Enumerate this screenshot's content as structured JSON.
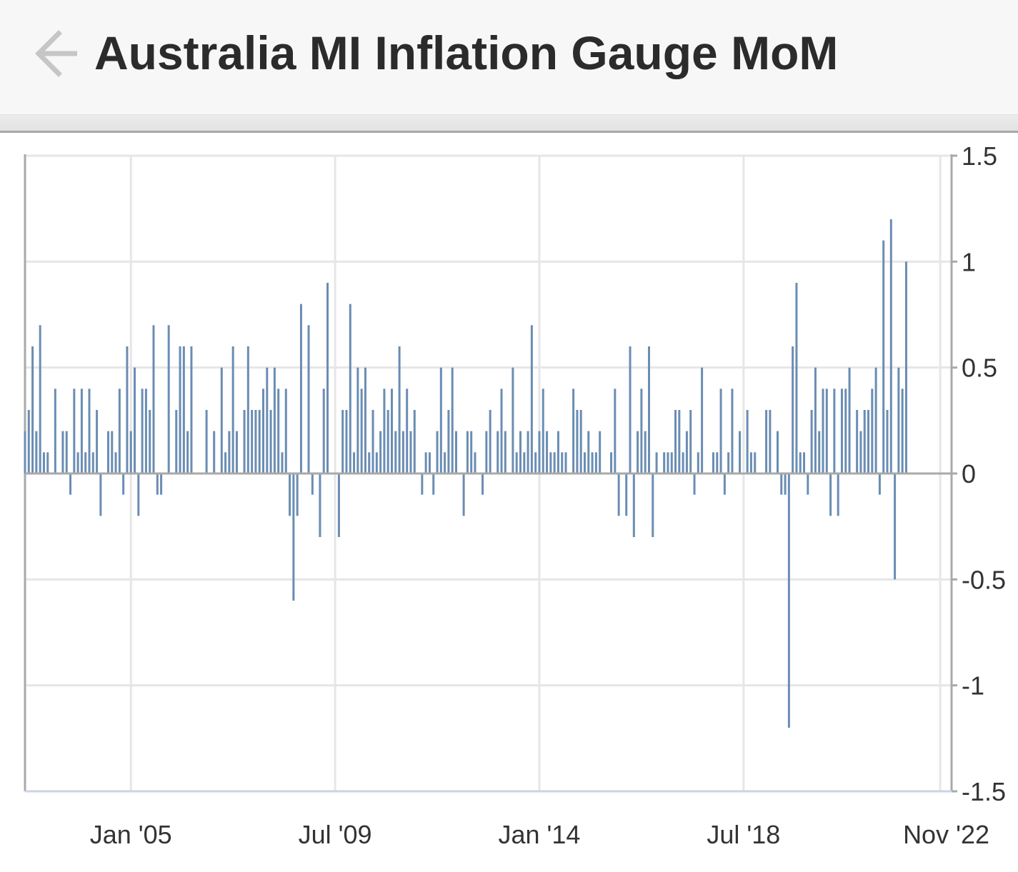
{
  "header": {
    "title": "Australia MI Inflation Gauge MoM",
    "back_icon": "arrow-left-icon"
  },
  "chart_data": {
    "type": "bar",
    "title": "Australia MI Inflation Gauge MoM",
    "xlabel": "",
    "ylabel": "",
    "ylim": [
      -1.5,
      1.5
    ],
    "y_ticks": [
      1.5,
      1,
      0.5,
      0,
      -0.5,
      -1,
      -1.5
    ],
    "y_tick_labels": [
      "1.5",
      "1",
      "0.5",
      "0",
      "-0.5",
      "-1",
      "-1.5"
    ],
    "x_ticks": [
      "2005-01",
      "2009-07",
      "2014-01",
      "2018-07",
      "2022-11"
    ],
    "x_tick_labels": [
      "Jan '05",
      "Jul '09",
      "Jan '14",
      "Jul '18",
      "Nov '22"
    ],
    "x_range": [
      "2002-09",
      "2023-02"
    ],
    "grid": true,
    "bar_color": "#6a8db3",
    "gridline_color": "#e6e6e6",
    "series": [
      {
        "start": "2002-09",
        "frequency": "monthly",
        "values": [
          0.2,
          0.3,
          0.6,
          0.2,
          0.7,
          0.1,
          0.1,
          0.0,
          0.4,
          0.0,
          0.2,
          0.2,
          -0.1,
          0.4,
          0.1,
          0.4,
          0.1,
          0.4,
          0.1,
          0.3,
          -0.2,
          0.0,
          0.2,
          0.2,
          0.1,
          0.4,
          -0.1,
          0.6,
          0.2,
          0.5,
          -0.2,
          0.4,
          0.4,
          0.3,
          0.7,
          -0.1,
          -0.1,
          0.0,
          0.7,
          0.0,
          0.3,
          0.6,
          0.6,
          0.2,
          0.6,
          0.0,
          0.0,
          0.0,
          0.3,
          0.0,
          0.2,
          0.0,
          0.5,
          0.1,
          0.2,
          0.6,
          0.2,
          0.0,
          0.3,
          0.6,
          0.3,
          0.3,
          0.3,
          0.4,
          0.5,
          0.3,
          0.5,
          0.4,
          0.1,
          0.4,
          -0.2,
          -0.6,
          -0.2,
          0.8,
          0.0,
          0.7,
          -0.1,
          0.0,
          -0.3,
          0.4,
          0.9,
          0.0,
          0.0,
          -0.3,
          0.3,
          0.3,
          0.8,
          0.1,
          0.5,
          0.4,
          0.5,
          0.1,
          0.3,
          0.1,
          0.2,
          0.4,
          0.3,
          0.4,
          0.2,
          0.6,
          0.2,
          0.4,
          0.2,
          0.3,
          0.0,
          -0.1,
          0.1,
          0.1,
          -0.1,
          0.2,
          0.5,
          0.1,
          0.3,
          0.5,
          0.2,
          0.0,
          -0.2,
          0.2,
          0.2,
          0.1,
          0.0,
          -0.1,
          0.2,
          0.3,
          0.0,
          0.2,
          0.4,
          0.2,
          0.0,
          0.5,
          0.1,
          0.2,
          0.1,
          0.2,
          0.7,
          0.1,
          0.2,
          0.4,
          0.2,
          0.1,
          0.1,
          0.2,
          0.1,
          0.1,
          0.0,
          0.4,
          0.3,
          0.3,
          0.1,
          0.2,
          0.1,
          0.1,
          0.2,
          0.0,
          0.0,
          0.1,
          0.4,
          -0.2,
          0.0,
          -0.2,
          0.6,
          -0.3,
          0.2,
          0.4,
          0.2,
          0.6,
          -0.3,
          0.1,
          0.0,
          0.1,
          0.1,
          0.1,
          0.3,
          0.3,
          0.1,
          0.2,
          0.3,
          -0.1,
          0.1,
          0.5,
          0.0,
          0.0,
          0.1,
          0.1,
          0.4,
          -0.1,
          0.1,
          0.4,
          0.0,
          0.2,
          0.0,
          0.3,
          0.1,
          0.1,
          0.0,
          0.0,
          0.3,
          0.3,
          0.0,
          0.2,
          -0.1,
          -0.1,
          -1.2,
          0.6,
          0.9,
          0.1,
          0.1,
          -0.1,
          0.3,
          0.5,
          0.2,
          0.4,
          0.4,
          -0.2,
          0.4,
          -0.2,
          0.4,
          0.4,
          0.5,
          0.0,
          0.3,
          0.2,
          0.3,
          0.3,
          0.4,
          0.5,
          -0.1,
          1.1,
          0.3,
          1.2,
          -0.5,
          0.5,
          0.4,
          1.0
        ]
      }
    ]
  }
}
